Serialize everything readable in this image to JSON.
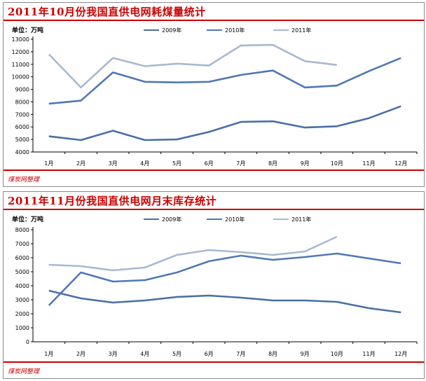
{
  "footer": "煤炭网整理",
  "legend": [
    "2009年",
    "2010年",
    "2011年"
  ],
  "colors": {
    "s2009": "#4a6fa5",
    "s2010": "#5078b4",
    "s2011": "#a8b8d4",
    "accent": "#cc0000"
  },
  "chart_data": [
    {
      "type": "line",
      "title": "2011年10月份我国直供电网耗煤量统计",
      "unit_label": "单位：万吨",
      "categories": [
        "1月",
        "2月",
        "3月",
        "4月",
        "5月",
        "6月",
        "7月",
        "8月",
        "9月",
        "10月",
        "11月",
        "12月"
      ],
      "ylim": [
        4000,
        13000
      ],
      "yticks": [
        4000,
        5000,
        6000,
        7000,
        8000,
        9000,
        10000,
        11000,
        12000,
        13000
      ],
      "series": [
        {
          "name": "2009年",
          "values": [
            5250,
            4950,
            5700,
            4950,
            5000,
            5600,
            6400,
            6450,
            5950,
            6050,
            6700,
            7650
          ]
        },
        {
          "name": "2010年",
          "values": [
            7850,
            8100,
            10350,
            9600,
            9550,
            9600,
            10150,
            10500,
            9150,
            9300,
            10450,
            11500
          ]
        },
        {
          "name": "2011年",
          "values": [
            11800,
            9150,
            11500,
            10850,
            11050,
            10900,
            12500,
            12550,
            11250,
            10950,
            null,
            null
          ]
        }
      ]
    },
    {
      "type": "line",
      "title": "2011年11月份我国直供电网月末库存统计",
      "unit_label": "单位：万吨",
      "categories": [
        "1月",
        "2月",
        "3月",
        "4月",
        "5月",
        "6月",
        "7月",
        "8月",
        "9月",
        "10月",
        "11月",
        "12月"
      ],
      "ylim": [
        0,
        8000
      ],
      "yticks": [
        0,
        1000,
        2000,
        3000,
        4000,
        5000,
        6000,
        7000,
        8000
      ],
      "series": [
        {
          "name": "2009年",
          "values": [
            3650,
            3100,
            2800,
            2950,
            3200,
            3300,
            3150,
            2950,
            2950,
            2850,
            2400,
            2100
          ]
        },
        {
          "name": "2010年",
          "values": [
            2600,
            4950,
            4300,
            4400,
            4950,
            5750,
            6150,
            5850,
            6050,
            6300,
            5950,
            5600
          ]
        },
        {
          "name": "2011年",
          "values": [
            5500,
            5400,
            5100,
            5300,
            6200,
            6550,
            6400,
            6200,
            6450,
            7500,
            null,
            null
          ]
        }
      ]
    }
  ]
}
